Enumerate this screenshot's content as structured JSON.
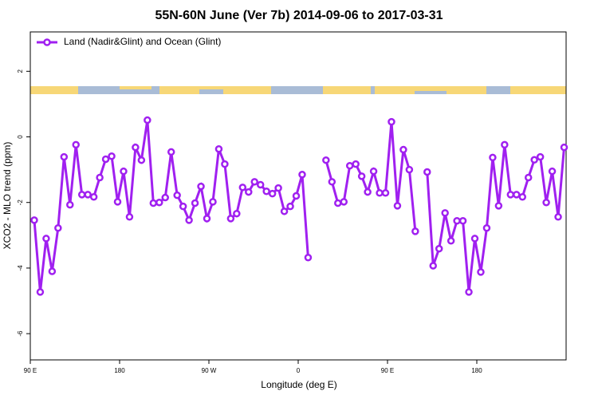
{
  "chart_data": {
    "type": "line",
    "title": "55N-60N June (Ver 7b)   2014-09-06 to 2017-03-31",
    "x_label": "Longitude (deg E)",
    "y_label": "XCO2 - MLO trend (ppm)",
    "x": [
      94,
      100,
      106,
      112,
      118,
      124,
      130,
      136,
      142,
      148,
      154,
      160,
      166,
      172,
      178,
      184,
      190,
      196,
      202,
      208,
      214,
      220,
      226,
      232,
      238,
      244,
      250,
      256,
      262,
      268,
      274,
      280,
      286,
      292,
      298,
      304,
      310,
      316,
      322,
      328,
      334,
      340,
      346,
      352,
      358,
      364,
      370,
      376,
      382,
      388,
      394,
      400,
      406,
      412,
      418,
      424,
      430,
      436,
      442,
      448,
      454,
      460,
      466,
      472,
      478,
      484,
      490,
      496,
      502,
      508,
      514,
      520,
      526,
      532,
      538,
      544,
      550,
      556,
      562,
      568,
      574,
      580,
      586,
      592,
      598,
      604,
      610,
      616,
      622,
      628
    ],
    "series": [
      {
        "name": "Land (Nadir&Glint) and Ocean (Glint)",
        "color": "#a020f0",
        "values": [
          -2.54,
          -4.73,
          -3.1,
          -4.1,
          -2.78,
          -0.61,
          -2.07,
          -0.24,
          -1.76,
          -1.76,
          -1.83,
          -1.24,
          -0.68,
          -0.59,
          -1.98,
          -1.05,
          -2.44,
          -0.32,
          -0.71,
          0.51,
          -2.02,
          -2.0,
          -1.85,
          -0.46,
          -1.78,
          -2.12,
          -2.54,
          -2.02,
          -1.51,
          -2.49,
          -1.98,
          -0.37,
          -0.83,
          -2.49,
          -2.34,
          -1.54,
          -1.68,
          -1.37,
          -1.46,
          -1.66,
          -1.73,
          -1.56,
          -2.27,
          -2.12,
          -1.8,
          -1.15,
          -3.68,
          null,
          null,
          -0.71,
          -1.37,
          -2.02,
          -1.98,
          -0.88,
          -0.83,
          -1.2,
          -1.68,
          -1.05,
          -1.71,
          -1.71,
          0.46,
          -2.1,
          -0.39,
          -1.0,
          -2.88,
          null,
          -1.07,
          -3.93,
          -3.41,
          -2.32,
          -3.17,
          -2.56,
          -2.56,
          -4.73,
          -3.1,
          -4.12,
          -2.78,
          -0.63,
          -2.1,
          -0.24,
          -1.76,
          -1.76,
          -1.83,
          -1.24,
          -0.7,
          -0.61,
          -2.0,
          -1.05,
          -2.44,
          -0.32
        ]
      }
    ],
    "xlim": [
      90,
      630
    ],
    "xticks": [
      {
        "value": 90,
        "label": "90 E"
      },
      {
        "value": 180,
        "label": "180"
      },
      {
        "value": 270,
        "label": "90 W"
      },
      {
        "value": 360,
        "label": "0"
      },
      {
        "value": 450,
        "label": "90 E"
      },
      {
        "value": 540,
        "label": "180"
      }
    ],
    "ylim": [
      -6.8,
      3.2
    ],
    "yticks": [
      -6,
      -4,
      -2,
      0,
      2
    ],
    "legend": "top-left"
  }
}
